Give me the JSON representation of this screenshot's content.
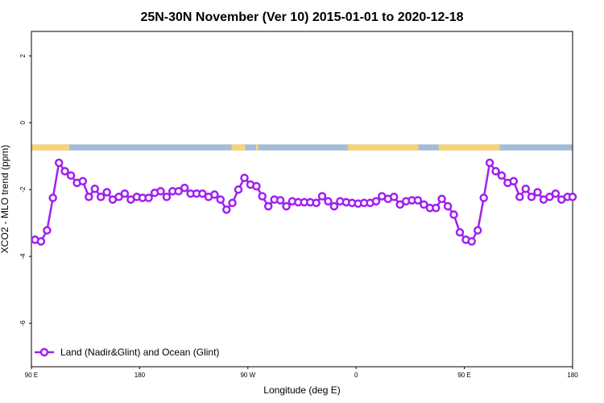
{
  "chart_data": {
    "type": "line",
    "title": "25N-30N November (Ver 10)   2015-01-01 to 2020-12-18",
    "xlabel": "Longitude (deg E)",
    "ylabel": "XCO2 - MLO trend (ppm)",
    "xlim": [
      90,
      450
    ],
    "ylim": [
      -7.3,
      2.73
    ],
    "x_ticks": [
      {
        "value": 90,
        "label": "90 E"
      },
      {
        "value": 162,
        "label": "180"
      },
      {
        "value": 234,
        "label": "90 W"
      },
      {
        "value": 306,
        "label": "0"
      },
      {
        "value": 378,
        "label": "90 E"
      },
      {
        "value": 450,
        "label": "180"
      }
    ],
    "y_ticks": [
      {
        "value": 2,
        "label": "2"
      },
      {
        "value": 0,
        "label": "0"
      },
      {
        "value": -2,
        "label": "-2"
      },
      {
        "value": -4,
        "label": "-4"
      },
      {
        "value": -6,
        "label": "-6"
      }
    ],
    "land_strip": {
      "y_range": [
        -0.65,
        -0.83
      ],
      "ocean_color": "#a4bcd8",
      "land_color": "#f8d479",
      "land_segments": [
        [
          90,
          115.2
        ],
        [
          223.2,
          232.2
        ],
        [
          239.4,
          240.8
        ],
        [
          300.6,
          347.4
        ],
        [
          360.9,
          401.5
        ]
      ]
    },
    "series": [
      {
        "name": "Land (Nadir&Glint) and Ocean (Glint)",
        "color": "#a020f0",
        "x": [
          92.4,
          96.4,
          100.4,
          104.3,
          108.3,
          112.3,
          116.3,
          120.3,
          124.2,
          128.2,
          132.2,
          136.2,
          140.2,
          144.1,
          148.1,
          152.1,
          156.1,
          160.1,
          164.0,
          168.0,
          172.0,
          176.0,
          180.0,
          183.9,
          187.9,
          191.9,
          195.9,
          199.9,
          203.8,
          207.8,
          211.8,
          215.8,
          219.8,
          223.7,
          227.7,
          231.7,
          235.7,
          239.7,
          243.6,
          247.6,
          251.6,
          255.6,
          259.6,
          263.5,
          267.5,
          271.5,
          275.5,
          279.5,
          283.4,
          287.4,
          291.4,
          295.4,
          299.4,
          303.3,
          307.3,
          311.3,
          315.3,
          319.3,
          323.2,
          327.2,
          331.2,
          335.2,
          339.2,
          343.1,
          347.1,
          351.1,
          355.1,
          359.1,
          363.0,
          367.0,
          371.0,
          375.0,
          379.0,
          382.9,
          386.9,
          390.9,
          394.9,
          398.9,
          402.8,
          406.8,
          410.8,
          414.8,
          418.8,
          422.7,
          426.7,
          430.7,
          434.7,
          438.7,
          442.6,
          446.6,
          450.0
        ],
        "values": [
          -3.5,
          -3.55,
          -3.22,
          -2.25,
          -1.2,
          -1.45,
          -1.58,
          -1.8,
          -1.75,
          -2.22,
          -1.98,
          -2.22,
          -2.08,
          -2.3,
          -2.22,
          -2.12,
          -2.3,
          -2.22,
          -2.25,
          -2.25,
          -2.1,
          -2.05,
          -2.22,
          -2.05,
          -2.05,
          -1.95,
          -2.12,
          -2.12,
          -2.12,
          -2.22,
          -2.15,
          -2.3,
          -2.6,
          -2.4,
          -2.0,
          -1.65,
          -1.85,
          -1.9,
          -2.2,
          -2.5,
          -2.3,
          -2.32,
          -2.5,
          -2.35,
          -2.38,
          -2.38,
          -2.38,
          -2.4,
          -2.2,
          -2.35,
          -2.5,
          -2.35,
          -2.38,
          -2.4,
          -2.42,
          -2.4,
          -2.4,
          -2.35,
          -2.2,
          -2.28,
          -2.22,
          -2.45,
          -2.35,
          -2.32,
          -2.32,
          -2.45,
          -2.55,
          -2.55,
          -2.28,
          -2.5,
          -2.75,
          -3.28,
          -3.5,
          -3.55,
          -3.22,
          -2.25,
          -1.2,
          -1.45,
          -1.58,
          -1.8,
          -1.75,
          -2.22,
          -1.98,
          -2.22,
          -2.08,
          -2.3,
          -2.22,
          -2.12,
          -2.3,
          -2.22,
          -2.22
        ]
      }
    ],
    "legend": {
      "position": "bottom-left",
      "entries": [
        "Land (Nadir&Glint) and Ocean (Glint)"
      ]
    }
  }
}
